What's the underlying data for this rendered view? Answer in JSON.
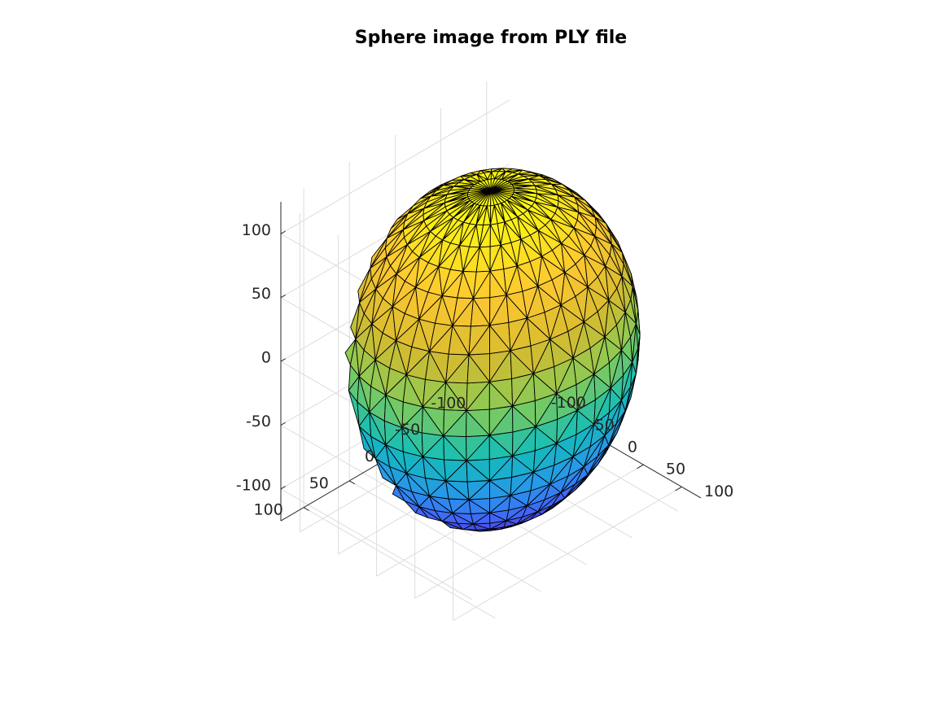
{
  "chart_data": {
    "type": "surface",
    "title": "Sphere image from PLY file",
    "xlabel": "",
    "ylabel": "",
    "zlabel": "",
    "surface": {
      "shape": "sphere",
      "center": [
        0,
        0,
        0
      ],
      "radius": 125,
      "latitude_bands": 20,
      "longitude_segments": 40,
      "faces": "triangulated",
      "edge_color": "#000000",
      "colormap": "parula",
      "color_by": "z"
    },
    "axes": {
      "x": {
        "lim": [
          -125,
          125
        ],
        "ticks": [
          -100,
          -50,
          0,
          50,
          100
        ],
        "tick_labels": [
          "-100",
          "-50",
          "0",
          "50",
          "100"
        ]
      },
      "y": {
        "lim": [
          -125,
          125
        ],
        "ticks": [
          -100,
          -50,
          0,
          50,
          100
        ],
        "tick_labels": [
          "-100",
          "-50",
          "0",
          "50",
          "100"
        ]
      },
      "z": {
        "lim": [
          -125,
          125
        ],
        "ticks": [
          -100,
          -50,
          0,
          50,
          100
        ],
        "tick_labels": [
          "-100",
          "-50",
          "0",
          "50",
          "100"
        ]
      }
    },
    "view": "3d",
    "grid": true,
    "box": false,
    "legend": "none"
  },
  "colors": {
    "axis": "#262626",
    "grid": "#dcdcdc",
    "edge": "#000000",
    "background": "#ffffff"
  }
}
